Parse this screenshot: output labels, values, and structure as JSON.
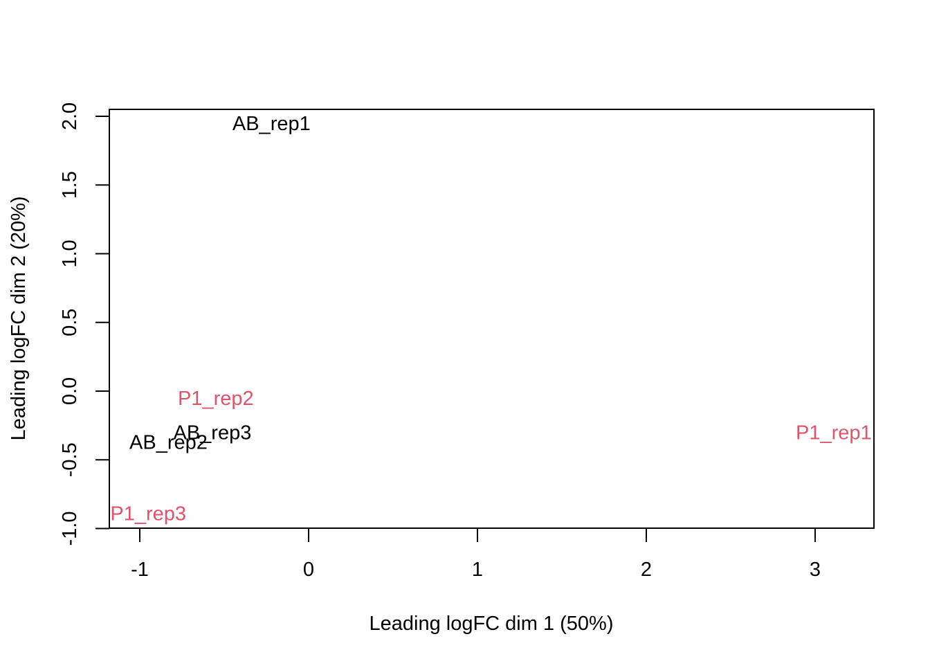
{
  "chart_data": {
    "type": "scatter",
    "title": "",
    "xlabel": "Leading logFC dim 1 (50%)",
    "ylabel": "Leading logFC dim 2 (20%)",
    "xlim": [
      -1.18,
      3.35
    ],
    "ylim": [
      -1.0,
      2.06
    ],
    "xticks": [
      -1,
      0,
      1,
      2,
      3
    ],
    "yticks": [
      -1.0,
      -0.5,
      0.0,
      0.5,
      1.0,
      1.5,
      2.0
    ],
    "xtick_labels": [
      "-1",
      "0",
      "1",
      "2",
      "3"
    ],
    "ytick_labels": [
      "-1.0",
      "-0.5",
      "0.0",
      "0.5",
      "1.0",
      "1.5",
      "2.0"
    ],
    "grid": false,
    "legend": null,
    "series": [
      {
        "group": "AB",
        "color": "#000000",
        "points": [
          {
            "label": "AB_rep1",
            "x": -0.22,
            "y": 1.95
          },
          {
            "label": "AB_rep2",
            "x": -0.83,
            "y": -0.37
          },
          {
            "label": "AB_rep3",
            "x": -0.57,
            "y": -0.3
          }
        ]
      },
      {
        "group": "P1",
        "color": "#DF536B",
        "points": [
          {
            "label": "P1_rep1",
            "x": 3.11,
            "y": -0.3
          },
          {
            "label": "P1_rep2",
            "x": -0.55,
            "y": -0.05
          },
          {
            "label": "P1_rep3",
            "x": -0.95,
            "y": -0.89
          }
        ]
      }
    ]
  }
}
